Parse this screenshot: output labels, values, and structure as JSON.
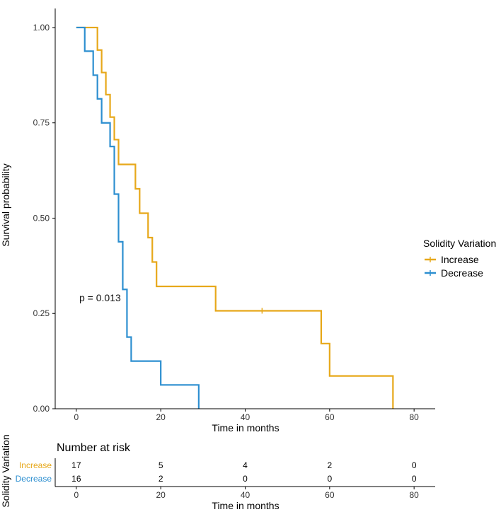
{
  "colors": {
    "increase": "#E7A81A",
    "decrease": "#2D8FD0",
    "axis": "#000000",
    "text": "#222222"
  },
  "chart_data": [
    {
      "type": "line",
      "chart_kind": "kaplan-meier step survival curve",
      "title": "",
      "xlabel": "Time in months",
      "ylabel": "Survival probability",
      "xlim": [
        -5,
        85
      ],
      "ylim": [
        0,
        1.05
      ],
      "x_ticks": [
        "0",
        "20",
        "40",
        "60",
        "80"
      ],
      "y_ticks": [
        "0.00",
        "0.25",
        "0.50",
        "0.75",
        "1.00"
      ],
      "legend": {
        "title": "Solidity Variation",
        "position": "right",
        "entries": [
          "Increase",
          "Decrease"
        ]
      },
      "annotation": "p = 0.013",
      "series": [
        {
          "name": "Increase",
          "color_key": "increase",
          "steps": [
            [
              0,
              1.0
            ],
            [
              5,
              0.941
            ],
            [
              6,
              0.882
            ],
            [
              7,
              0.824
            ],
            [
              8,
              0.765
            ],
            [
              9,
              0.706
            ],
            [
              10,
              0.641
            ],
            [
              14,
              0.577
            ],
            [
              15,
              0.513
            ],
            [
              17,
              0.449
            ],
            [
              18,
              0.385
            ],
            [
              19,
              0.321
            ],
            [
              33,
              0.257
            ],
            [
              58,
              0.171
            ],
            [
              60,
              0.086
            ],
            [
              75,
              0.0
            ]
          ],
          "end": 75,
          "censored": [
            44
          ]
        },
        {
          "name": "Decrease",
          "color_key": "decrease",
          "steps": [
            [
              0,
              1.0
            ],
            [
              2,
              0.938
            ],
            [
              4,
              0.875
            ],
            [
              5,
              0.813
            ],
            [
              6,
              0.75
            ],
            [
              8,
              0.688
            ],
            [
              9,
              0.563
            ],
            [
              10,
              0.438
            ],
            [
              11,
              0.313
            ],
            [
              12,
              0.188
            ],
            [
              13,
              0.125
            ],
            [
              20,
              0.0625
            ],
            [
              29,
              0.0
            ]
          ],
          "end": 29,
          "censored": []
        }
      ]
    },
    {
      "type": "table",
      "title": "Number at risk",
      "ylabel": "Solidity Variation",
      "xlabel": "Time in months",
      "x_ticks": [
        "0",
        "20",
        "40",
        "60",
        "80"
      ],
      "times": [
        0,
        20,
        40,
        60,
        80
      ],
      "rows": [
        {
          "name": "Increase",
          "color_key": "increase",
          "values": [
            "17",
            "5",
            "4",
            "2",
            "0"
          ]
        },
        {
          "name": "Decrease",
          "color_key": "decrease",
          "values": [
            "16",
            "2",
            "0",
            "0",
            "0"
          ]
        }
      ]
    }
  ]
}
